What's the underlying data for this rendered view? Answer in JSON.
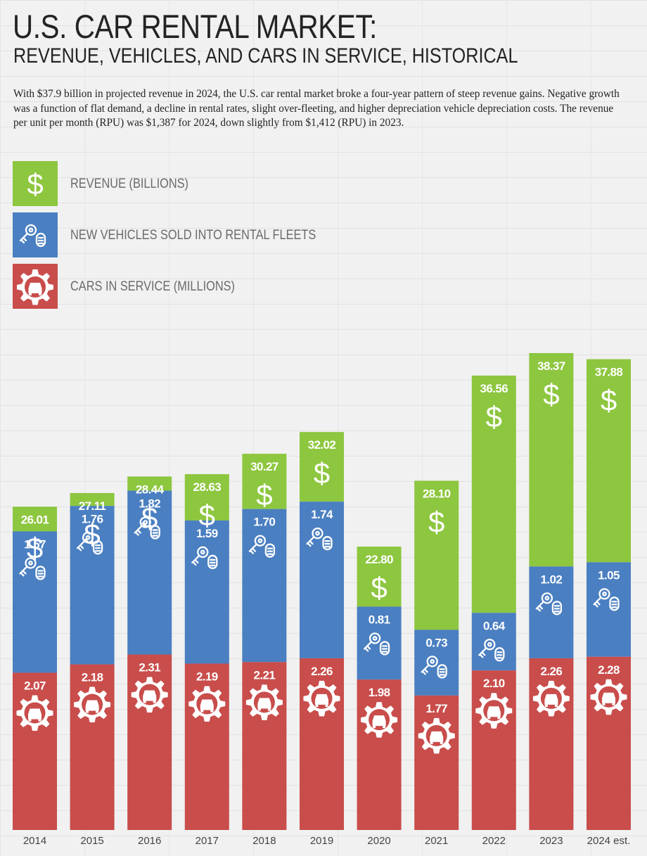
{
  "title": "U.S. CAR RENTAL MARKET:",
  "subtitle": "REVENUE, VEHICLES, AND CARS IN SERVICE, HISTORICAL",
  "intro": "With $37.9 billion in projected revenue in 2024, the U.S. car rental market broke a four-year pattern of steep revenue gains. Negative growth was a function of flat demand, a decline in rental rates, slight over-fleeting, and higher depreciation vehicle depreciation costs. The revenue per unit per month (RPU) was $1,387 for 2024, down slightly from $1,412 (RPU) in 2023.",
  "legend": [
    {
      "label": "REVENUE (BILLIONS)",
      "color": "#8dc63f",
      "icon": "dollar-icon"
    },
    {
      "label": "NEW VEHICLES SOLD INTO RENTAL FLEETS",
      "color": "#4a7fc1",
      "icon": "car-keys-icon"
    },
    {
      "label": "CARS IN SERVICE (MILLIONS)",
      "color": "#c84d4b",
      "icon": "car-gear-icon"
    }
  ],
  "chart_data": {
    "type": "bar",
    "categories": [
      "2014",
      "2015",
      "2016",
      "2017",
      "2018",
      "2019",
      "2020",
      "2021",
      "2022",
      "2023",
      "2024 est."
    ],
    "series": [
      {
        "name": "REVENUE (BILLIONS)",
        "values": [
          26.01,
          27.11,
          28.44,
          28.63,
          30.27,
          32.02,
          22.8,
          28.1,
          36.56,
          38.37,
          37.88
        ],
        "labels": [
          "26.01",
          "27.11",
          "28.44",
          "28.63",
          "30.27",
          "32.02",
          "22.80",
          "28.10",
          "36.56",
          "38.37",
          "37.88"
        ],
        "color": "#8dc63f"
      },
      {
        "name": "NEW VEHICLES SOLD INTO RENTAL FLEETS",
        "values": [
          1.57,
          1.76,
          1.82,
          1.59,
          1.7,
          1.74,
          0.81,
          0.73,
          0.64,
          1.02,
          1.05
        ],
        "labels": [
          "1.57",
          "1.76",
          "1.82",
          "1.59",
          "1.70",
          "1.74",
          "0.81",
          "0.73",
          "0.64",
          "1.02",
          "1.05"
        ],
        "color": "#4a7fc1"
      },
      {
        "name": "CARS IN SERVICE (MILLIONS)",
        "values": [
          2.07,
          2.18,
          2.31,
          2.19,
          2.21,
          2.26,
          1.98,
          1.77,
          2.1,
          2.26,
          2.28
        ],
        "labels": [
          "2.07",
          "2.18",
          "2.31",
          "2.19",
          "2.21",
          "2.26",
          "1.98",
          "1.77",
          "2.10",
          "2.26",
          "2.28"
        ],
        "color": "#c84d4b"
      }
    ]
  }
}
